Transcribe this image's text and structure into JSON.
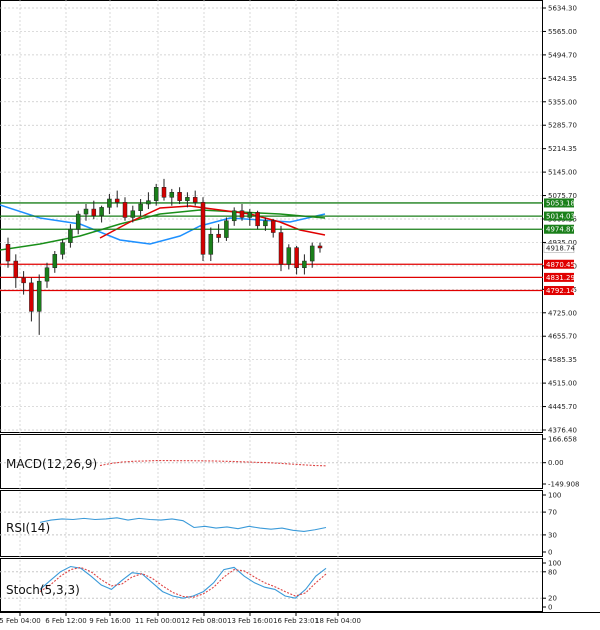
{
  "colors": {
    "support": "#e00000",
    "resistance": "#1a7f1a",
    "bull": "#1a7f1a",
    "bear": "#d40000",
    "ma_fast": "#e00000",
    "ma_mid": "#1e90ff",
    "ma_slow": "#1a8f1a",
    "grid": "#c8c8c8",
    "macd_signal": "#d44",
    "rsi": "#3a9ad9",
    "stoch_main": "#3a9ad9",
    "stoch_signal": "#d44"
  },
  "chart_data": {
    "type": "candlestick",
    "x_tick_labels": [
      "5 Feb 04:00",
      "6 Feb 12:00",
      "9 Feb 16:00",
      "11 Feb 00:00",
      "12 Feb 08:00",
      "13 Feb 16:00",
      "16 Feb 23:01",
      "18 Feb 04:00"
    ],
    "y_tick_labels": [
      "5634.30",
      "5565.00",
      "5494.70",
      "5424.35",
      "5355.00",
      "5285.70",
      "5214.35",
      "5145.00",
      "5075.70",
      "5005.35",
      "4935.00",
      "4865.70",
      "4795.35",
      "4725.00",
      "4655.70",
      "4585.35",
      "4515.00",
      "4445.70",
      "4376.40"
    ],
    "ylim": [
      4376.4,
      5634.3
    ],
    "current_price": "4918.74",
    "levels": [
      {
        "value": 5053.18,
        "label": "5053.18",
        "kind": "resistance"
      },
      {
        "value": 5014.03,
        "label": "5014.03",
        "kind": "resistance"
      },
      {
        "value": 4974.87,
        "label": "4974.87",
        "kind": "resistance"
      },
      {
        "value": 4870.45,
        "label": "4870.45",
        "kind": "support"
      },
      {
        "value": 4831.29,
        "label": "4831.29",
        "kind": "support"
      },
      {
        "value": 4792.14,
        "label": "4792.14",
        "kind": "support"
      }
    ],
    "candles": [
      [
        4930,
        4950,
        4860,
        4880
      ],
      [
        4880,
        4900,
        4800,
        4830
      ],
      [
        4830,
        4850,
        4780,
        4815
      ],
      [
        4815,
        4830,
        4700,
        4730
      ],
      [
        4730,
        4840,
        4660,
        4820
      ],
      [
        4820,
        4875,
        4800,
        4860
      ],
      [
        4860,
        4910,
        4845,
        4900
      ],
      [
        4900,
        4945,
        4885,
        4935
      ],
      [
        4935,
        4990,
        4920,
        4975
      ],
      [
        4975,
        5030,
        4960,
        5020
      ],
      [
        5020,
        5050,
        5000,
        5035
      ],
      [
        5035,
        5060,
        5005,
        5015
      ],
      [
        5015,
        5045,
        4995,
        5040
      ],
      [
        5040,
        5080,
        5020,
        5065
      ],
      [
        5065,
        5090,
        5040,
        5055
      ],
      [
        5055,
        5070,
        5000,
        5010
      ],
      [
        5010,
        5045,
        4995,
        5030
      ],
      [
        5030,
        5065,
        5015,
        5050
      ],
      [
        5050,
        5085,
        5035,
        5060
      ],
      [
        5060,
        5110,
        5045,
        5100
      ],
      [
        5100,
        5125,
        5060,
        5070
      ],
      [
        5070,
        5095,
        5045,
        5085
      ],
      [
        5085,
        5100,
        5050,
        5060
      ],
      [
        5060,
        5085,
        5040,
        5070
      ],
      [
        5070,
        5090,
        5045,
        5055
      ],
      [
        5055,
        5070,
        4880,
        4900
      ],
      [
        4900,
        4980,
        4880,
        4960
      ],
      [
        4960,
        4990,
        4935,
        4950
      ],
      [
        4950,
        5010,
        4940,
        5000
      ],
      [
        5000,
        5040,
        4985,
        5030
      ],
      [
        5030,
        5050,
        5000,
        5010
      ],
      [
        5010,
        5035,
        4985,
        5025
      ],
      [
        5025,
        5030,
        4975,
        4985
      ],
      [
        4985,
        5010,
        4970,
        5000
      ],
      [
        5000,
        5005,
        4950,
        4965
      ],
      [
        4965,
        4985,
        4850,
        4870
      ],
      [
        4870,
        4930,
        4855,
        4920
      ],
      [
        4920,
        4925,
        4840,
        4860
      ],
      [
        4860,
        4900,
        4840,
        4880
      ],
      [
        4880,
        4935,
        4860,
        4925
      ],
      [
        4925,
        4935,
        4905,
        4919
      ]
    ],
    "panels": [
      {
        "name": "MACD(12,26,9)",
        "ticks": [
          "166.658",
          "0.00",
          "-149.908"
        ],
        "range": [
          -149.908,
          166.658
        ],
        "signal": [
          -20,
          -5,
          5,
          10,
          12,
          15,
          15,
          14,
          14,
          13,
          12,
          10,
          8,
          5,
          2,
          0,
          -5,
          -10,
          -15,
          -20,
          -22
        ]
      },
      {
        "name": "RSI(14)",
        "ticks": [
          "100",
          "70",
          "30",
          "0"
        ],
        "range": [
          0,
          100
        ],
        "values": [
          52,
          56,
          58,
          57,
          59,
          57,
          58,
          60,
          56,
          59,
          57,
          56,
          58,
          55,
          43,
          45,
          42,
          44,
          41,
          45,
          42,
          40,
          42,
          38,
          36,
          39,
          43
        ]
      },
      {
        "name": "Stoch(5,3,3)",
        "ticks": [
          "100",
          "80",
          "20",
          "0"
        ],
        "range": [
          0,
          100
        ],
        "main": [
          40,
          60,
          80,
          92,
          88,
          70,
          50,
          40,
          60,
          78,
          75,
          55,
          35,
          25,
          20,
          25,
          35,
          55,
          85,
          90,
          70,
          55,
          45,
          40,
          25,
          20,
          40,
          70,
          88
        ],
        "signal": [
          35,
          50,
          70,
          85,
          90,
          80,
          62,
          48,
          52,
          68,
          76,
          65,
          48,
          33,
          24,
          22,
          30,
          45,
          68,
          85,
          82,
          68,
          55,
          46,
          35,
          25,
          32,
          55,
          75
        ]
      }
    ]
  }
}
